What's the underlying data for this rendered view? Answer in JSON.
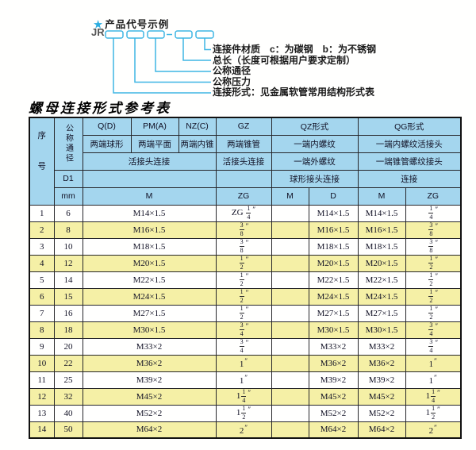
{
  "diagram": {
    "star": "★",
    "title": "产品代号示例",
    "prefix": "JR",
    "accent_color": "#3fb6e4",
    "labels": [
      "连接件材质　c：为碳钢　b：为不锈钢",
      "总长（长度可根据用户要求定制）",
      "公称通径",
      "公称压力",
      "连接形式：见金属软管常用结构形式表"
    ]
  },
  "table": {
    "title": "螺母连接形式参考表",
    "colors": {
      "header_bg": "#a4d6ee",
      "row_bg": "#fffffe",
      "row_alt_bg": "#f5f0a6",
      "border": "#111111"
    },
    "header": {
      "seq": "序号",
      "diameter": "公称通径",
      "d1": "D1",
      "mm": "mm",
      "g1": "Q(D)",
      "g2": "PM(A)",
      "g3": "NZ(C)",
      "g4": "GZ",
      "g5": "QZ形式",
      "g6": "QG形式",
      "e1": "两端球形",
      "e2": "两端平面",
      "e3": "两端内锥",
      "e4": "两端锥管",
      "e5": "一端内螺纹",
      "e6": "一端内螺纹活接头",
      "u1": "活接头连接",
      "u2": "活接头连接",
      "u3": "一端外螺纹",
      "u4": "一端锥管螺纹接头",
      "c1": "球形接头连接",
      "c2": "连接",
      "m1": "M",
      "m2": "ZG",
      "m3": "M",
      "m4": "D",
      "m5": "M",
      "m6": "ZG"
    },
    "rows": [
      {
        "seq": "1",
        "mm": "6",
        "m": "M14×1.5",
        "gz": "ZG 1/4",
        "qz_m": "",
        "qz_d": "M14×1.5",
        "qg_m": "M14×1.5",
        "qg_zg": "1/4"
      },
      {
        "seq": "2",
        "mm": "8",
        "m": "M16×1.5",
        "gz": "3/8",
        "qz_m": "",
        "qz_d": "M16×1.5",
        "qg_m": "M16×1.5",
        "qg_zg": "3/8"
      },
      {
        "seq": "3",
        "mm": "10",
        "m": "M18×1.5",
        "gz": "3/8",
        "qz_m": "",
        "qz_d": "M18×1.5",
        "qg_m": "M18×1.5",
        "qg_zg": "3/8"
      },
      {
        "seq": "4",
        "mm": "12",
        "m": "M20×1.5",
        "gz": "1/2",
        "qz_m": "",
        "qz_d": "M20×1.5",
        "qg_m": "M20×1.5",
        "qg_zg": "1/2"
      },
      {
        "seq": "5",
        "mm": "14",
        "m": "M22×1.5",
        "gz": "1/2",
        "qz_m": "",
        "qz_d": "M22×1.5",
        "qg_m": "M22×1.5",
        "qg_zg": "1/2"
      },
      {
        "seq": "6",
        "mm": "15",
        "m": "M24×1.5",
        "gz": "1/2",
        "qz_m": "",
        "qz_d": "M24×1.5",
        "qg_m": "M24×1.5",
        "qg_zg": "1/2"
      },
      {
        "seq": "7",
        "mm": "16",
        "m": "M27×1.5",
        "gz": "1/2",
        "qz_m": "",
        "qz_d": "M27×1.5",
        "qg_m": "M27×1.5",
        "qg_zg": "1/2"
      },
      {
        "seq": "8",
        "mm": "18",
        "m": "M30×1.5",
        "gz": "3/4",
        "qz_m": "",
        "qz_d": "M30×1.5",
        "qg_m": "M30×1.5",
        "qg_zg": "3/4"
      },
      {
        "seq": "9",
        "mm": "20",
        "m": "M33×2",
        "gz": "3/4",
        "qz_m": "",
        "qz_d": "M33×2",
        "qg_m": "M33×2",
        "qg_zg": "3/4"
      },
      {
        "seq": "10",
        "mm": "22",
        "m": "M36×2",
        "gz": "1",
        "qz_m": "",
        "qz_d": "M36×2",
        "qg_m": "M36×2",
        "qg_zg": "1"
      },
      {
        "seq": "11",
        "mm": "25",
        "m": "M39×2",
        "gz": "1",
        "qz_m": "",
        "qz_d": "M39×2",
        "qg_m": "M39×2",
        "qg_zg": "1"
      },
      {
        "seq": "12",
        "mm": "32",
        "m": "M45×2",
        "gz": "1 1/4",
        "qz_m": "",
        "qz_d": "M45×2",
        "qg_m": "M45×2",
        "qg_zg": "1 1/4"
      },
      {
        "seq": "13",
        "mm": "40",
        "m": "M52×2",
        "gz": "1 1/2",
        "qz_m": "",
        "qz_d": "M52×2",
        "qg_m": "M52×2",
        "qg_zg": "1 1/2"
      },
      {
        "seq": "14",
        "mm": "50",
        "m": "M64×2",
        "gz": "2",
        "qz_m": "",
        "qz_d": "M64×2",
        "qg_m": "M64×2",
        "qg_zg": "2"
      }
    ]
  }
}
